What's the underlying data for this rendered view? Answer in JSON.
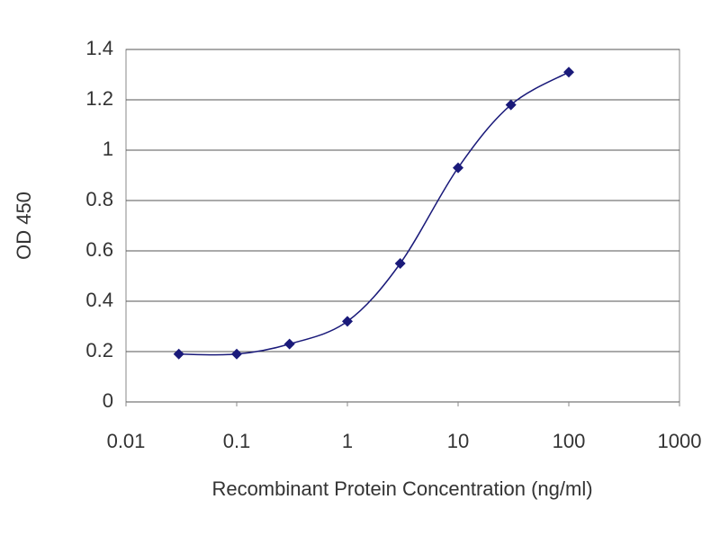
{
  "chart_data": {
    "type": "scatter-line",
    "x_label": "Recombinant Protein Concentration (ng/ml)",
    "y_label": "OD 450",
    "x": [
      0.03,
      0.1,
      0.3,
      1,
      3,
      10,
      30,
      100
    ],
    "series": [
      {
        "color": "#1a1a7a",
        "values": [
          0.19,
          0.19,
          0.23,
          0.32,
          0.55,
          0.93,
          1.18,
          1.31
        ]
      }
    ],
    "x_log": true,
    "xlim": [
      0.01,
      1000
    ],
    "xticks": [
      0.01,
      0.1,
      1,
      10,
      100,
      1000
    ],
    "ylim": [
      0,
      1.4
    ],
    "yticks": [
      0,
      0.2,
      0.4,
      0.6,
      0.8,
      1,
      1.2,
      1.4
    ],
    "grid": true
  }
}
